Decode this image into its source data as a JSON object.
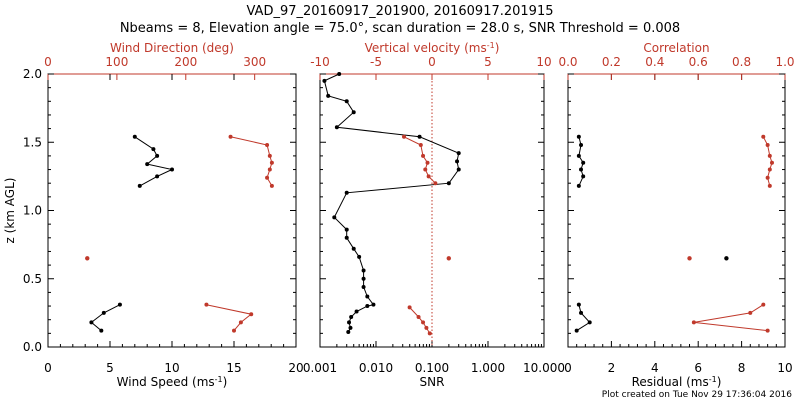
{
  "title_line1": "VAD_97_20160917_201900, 20160917.201915",
  "title_line2": "Nbeams = 8, Elevation angle = 75.0°, scan duration = 28.0 s, SNR Threshold = 0.008",
  "footer_credit": "Plot created on Tue Nov 29 17:36:04 2016",
  "colors": {
    "primary": "#000000",
    "secondary": "#c0392b"
  },
  "chart_data": [
    {
      "type": "line",
      "ylabel": "z (km AGL)",
      "ylim": [
        0,
        2.0
      ],
      "yticks": [
        "0.0",
        "0.5",
        "1.0",
        "1.5",
        "2.0"
      ],
      "bottom_axis": {
        "label": "Wind Speed (ms",
        "label_sup": "-1",
        "label_end": ")",
        "range": [
          0,
          20
        ],
        "ticks": [
          "0",
          "5",
          "10",
          "15",
          "20"
        ]
      },
      "top_axis": {
        "label": "Wind Direction (deg)",
        "range": [
          0,
          360
        ],
        "ticks": [
          "0",
          "100",
          "200",
          "300"
        ]
      },
      "series": [
        {
          "axis": "bottom",
          "segments": [
            [
              [
                7.4,
                1.18
              ],
              [
                8.8,
                1.25
              ],
              [
                10.0,
                1.3
              ],
              [
                8.0,
                1.34
              ],
              [
                8.8,
                1.4
              ],
              [
                8.5,
                1.45
              ],
              [
                7.0,
                1.54
              ]
            ],
            [
              [
                5.8,
                0.31
              ],
              [
                4.5,
                0.25
              ],
              [
                3.5,
                0.18
              ],
              [
                4.3,
                0.12
              ]
            ]
          ]
        },
        {
          "axis": "top",
          "segments": [
            [
              [
                325,
                1.18
              ],
              [
                318,
                1.24
              ],
              [
                322,
                1.3
              ],
              [
                325,
                1.35
              ],
              [
                322,
                1.4
              ],
              [
                318,
                1.48
              ],
              [
                265,
                1.54
              ]
            ],
            [
              [
                230,
                0.31
              ],
              [
                295,
                0.24
              ],
              [
                280,
                0.18
              ],
              [
                270,
                0.12
              ]
            ]
          ],
          "points": [
            [
              57,
              0.65
            ]
          ]
        }
      ]
    },
    {
      "type": "line",
      "bottom_axis": {
        "label": "SNR",
        "scale": "log",
        "range": [
          0.001,
          10
        ],
        "ticks": [
          "0.001",
          "0.010",
          "0.100",
          "1.000",
          "10.000"
        ]
      },
      "top_axis": {
        "label": "Vertical velocity (ms",
        "label_sup": "-1",
        "label_end": ")",
        "range": [
          -10,
          10
        ],
        "ticks": [
          "-10",
          "-5",
          "0",
          "5",
          "10"
        ]
      },
      "series": [
        {
          "axis": "bottom",
          "segments": [
            [
              [
                0.0032,
                0.11
              ],
              [
                0.0035,
                0.14
              ],
              [
                0.0033,
                0.18
              ],
              [
                0.0036,
                0.22
              ],
              [
                0.0045,
                0.26
              ],
              [
                0.007,
                0.3
              ],
              [
                0.009,
                0.31
              ],
              [
                0.007,
                0.37
              ],
              [
                0.006,
                0.44
              ],
              [
                0.006,
                0.5
              ],
              [
                0.006,
                0.56
              ],
              [
                0.005,
                0.66
              ],
              [
                0.004,
                0.72
              ],
              [
                0.003,
                0.8
              ],
              [
                0.003,
                0.86
              ],
              [
                0.0018,
                0.95
              ],
              [
                0.003,
                1.13
              ],
              [
                0.2,
                1.2
              ],
              [
                0.3,
                1.3
              ],
              [
                0.28,
                1.36
              ],
              [
                0.3,
                1.42
              ],
              [
                0.06,
                1.54
              ],
              [
                0.002,
                1.61
              ],
              [
                0.004,
                1.72
              ],
              [
                0.003,
                1.8
              ],
              [
                0.0014,
                1.84
              ],
              [
                0.0012,
                1.95
              ],
              [
                0.0022,
                2.0
              ]
            ]
          ]
        },
        {
          "axis": "top",
          "segments": [
            [
              [
                -0.2,
                0.1
              ],
              [
                -0.5,
                0.14
              ],
              [
                -0.8,
                0.18
              ],
              [
                -1.2,
                0.22
              ],
              [
                -2.0,
                0.29
              ]
            ],
            [
              [
                0.3,
                1.2
              ],
              [
                -0.3,
                1.25
              ],
              [
                -0.6,
                1.3
              ],
              [
                -0.4,
                1.35
              ],
              [
                -0.8,
                1.4
              ],
              [
                -1.0,
                1.48
              ],
              [
                -2.5,
                1.54
              ]
            ]
          ],
          "points": [
            [
              1.5,
              0.65
            ]
          ]
        }
      ],
      "reference_lines": [
        {
          "axis": "top",
          "value": 0,
          "style": "dotted"
        }
      ]
    },
    {
      "type": "line",
      "bottom_axis": {
        "label": "Residual (ms",
        "label_sup": "-1",
        "label_end": ")",
        "range": [
          0,
          10
        ],
        "ticks": [
          "0",
          "2",
          "4",
          "6",
          "8",
          "10"
        ]
      },
      "top_axis": {
        "label": "Correlation",
        "range": [
          0,
          1.0
        ],
        "ticks": [
          "0.0",
          "0.2",
          "0.4",
          "0.6",
          "0.8",
          "1.0"
        ]
      },
      "series": [
        {
          "axis": "bottom",
          "segments": [
            [
              [
                0.5,
                1.18
              ],
              [
                0.7,
                1.25
              ],
              [
                0.6,
                1.3
              ],
              [
                0.7,
                1.35
              ],
              [
                0.5,
                1.4
              ],
              [
                0.6,
                1.48
              ],
              [
                0.5,
                1.54
              ]
            ],
            [
              [
                0.5,
                0.31
              ],
              [
                0.6,
                0.25
              ],
              [
                1.0,
                0.18
              ],
              [
                0.4,
                0.12
              ]
            ]
          ],
          "points": [
            [
              7.3,
              0.65
            ]
          ]
        },
        {
          "axis": "top",
          "segments": [
            [
              [
                0.93,
                1.18
              ],
              [
                0.92,
                1.24
              ],
              [
                0.93,
                1.3
              ],
              [
                0.94,
                1.35
              ],
              [
                0.93,
                1.4
              ],
              [
                0.92,
                1.48
              ],
              [
                0.9,
                1.54
              ]
            ],
            [
              [
                0.9,
                0.31
              ],
              [
                0.84,
                0.25
              ],
              [
                0.58,
                0.18
              ],
              [
                0.92,
                0.12
              ]
            ]
          ],
          "points": [
            [
              0.56,
              0.65
            ]
          ]
        }
      ]
    }
  ]
}
